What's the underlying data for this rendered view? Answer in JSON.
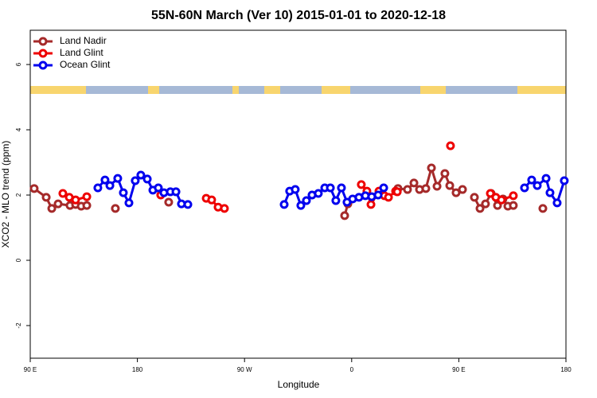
{
  "chart_data": {
    "type": "line",
    "title": "55N-60N March (Ver 10)   2015-01-01 to 2020-12-18",
    "x_label": "Longitude",
    "y_label": "XCO2 - MLO trend (ppm)",
    "xlim": [
      90,
      540
    ],
    "xticks": [
      {
        "value": 90,
        "label": "90 E"
      },
      180,
      {
        "value": 270,
        "label": "90 W"
      },
      {
        "value": 360,
        "label": "0"
      },
      {
        "value": 450,
        "label": "90 E"
      },
      {
        "value": 540,
        "label": "180"
      }
    ],
    "ylim": [
      -3,
      7.05
    ],
    "yticks": [
      -2,
      0,
      2,
      4,
      6
    ],
    "legend": "top-left",
    "series": [
      {
        "name": "Land Nadir",
        "color": "#a52a2a",
        "x": [
          93.3,
          103.4,
          108.1,
          113.4,
          123.4,
          128.1,
          132.8,
          137.5,
          null,
          161.5,
          null,
          206.3,
          null,
          354.1,
          356.8,
          null,
          398.9,
          406.9,
          412.3,
          417.0,
          422.3,
          427.0,
          431.7,
          438.3,
          442.4,
          447.7,
          453.1,
          null,
          463.1,
          467.8,
          472.4,
          477.1,
          482.5,
          487.1,
          491.2,
          495.8,
          null,
          520.6
        ],
        "values": [
          2.2,
          1.93,
          1.59,
          1.73,
          1.68,
          1.71,
          1.66,
          1.68,
          null,
          1.59,
          null,
          1.78,
          null,
          1.37,
          1.73,
          null,
          2.2,
          2.17,
          2.37,
          2.17,
          2.2,
          2.83,
          2.27,
          2.66,
          2.29,
          2.07,
          2.17,
          null,
          1.93,
          1.59,
          1.73,
          2.05,
          1.68,
          1.88,
          1.66,
          1.68,
          null,
          1.59
        ]
      },
      {
        "name": "Land Glint",
        "color": "#ee0000",
        "x": [
          117.4,
          122.8,
          128.1,
          137.5,
          null,
          199.6,
          null,
          237.8,
          242.4,
          247.8,
          253.1,
          null,
          368.1,
          372.8,
          376.2,
          382.9,
          387.5,
          390.9,
          396.9,
          398.3,
          null,
          443.0,
          null,
          476.5,
          481.1,
          485.8,
          495.8
        ],
        "values": [
          2.05,
          1.93,
          1.85,
          1.95,
          null,
          2.0,
          null,
          1.9,
          1.85,
          1.63,
          1.59,
          null,
          2.32,
          2.12,
          1.71,
          2.12,
          1.98,
          1.93,
          2.12,
          2.1,
          null,
          3.51,
          null,
          2.05,
          1.93,
          1.85,
          1.98
        ]
      },
      {
        "name": "Ocean Glint",
        "color": "#0000ee",
        "x": [
          146.8,
          152.8,
          156.9,
          163.5,
          168.2,
          172.9,
          178.2,
          182.9,
          188.3,
          193.0,
          197.6,
          202.3,
          207.7,
          212.4,
          217.0,
          222.4,
          null,
          303.3,
          307.9,
          312.6,
          317.3,
          322.0,
          326.7,
          332.0,
          337.4,
          342.1,
          346.7,
          351.4,
          356.1,
          360.8,
          366.1,
          371.5,
          376.8,
          382.2,
          386.9,
          null,
          505.2,
          511.2,
          515.9,
          523.3,
          526.6,
          532.6,
          538.6
        ],
        "values": [
          2.22,
          2.46,
          2.29,
          2.51,
          2.07,
          1.76,
          2.44,
          2.61,
          2.49,
          2.15,
          2.22,
          2.07,
          2.1,
          2.1,
          1.73,
          1.71,
          null,
          1.71,
          2.12,
          2.17,
          1.68,
          1.83,
          2.0,
          2.05,
          2.22,
          2.22,
          1.83,
          2.22,
          1.78,
          1.88,
          1.93,
          1.98,
          1.95,
          2.0,
          2.22,
          null,
          2.22,
          2.46,
          2.29,
          2.51,
          2.07,
          1.76,
          2.44
        ]
      }
    ]
  }
}
